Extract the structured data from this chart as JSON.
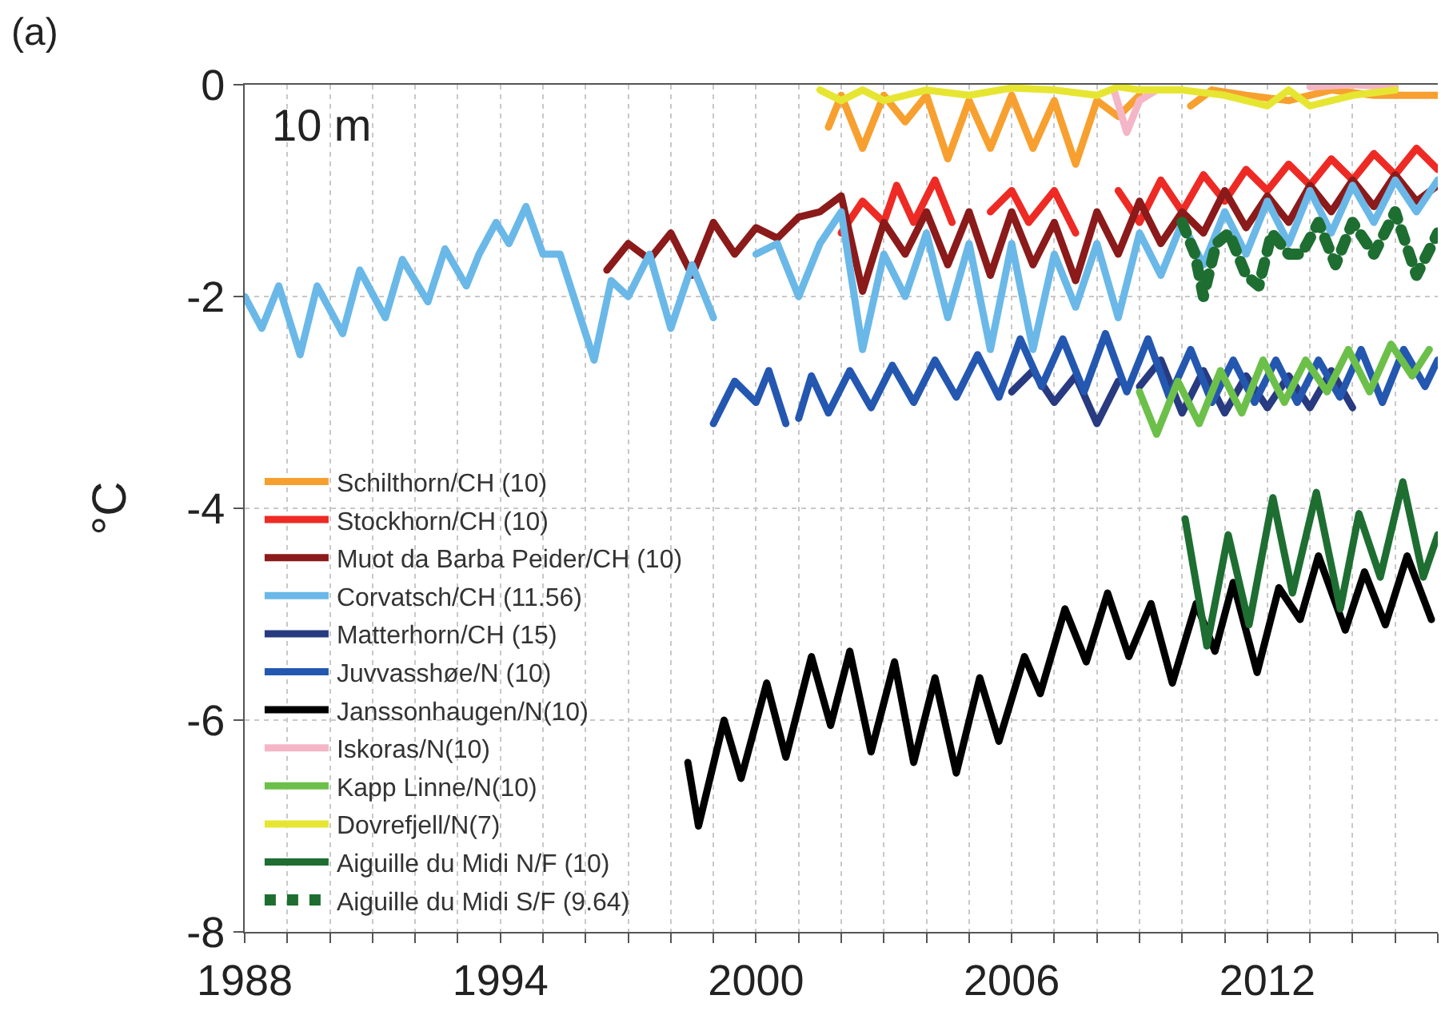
{
  "chart_data": {
    "type": "line",
    "ylabel": "°C",
    "annotations": [
      "(a)",
      "10 m"
    ],
    "xlim": [
      1988,
      2016
    ],
    "ylim": [
      -8,
      0
    ],
    "xticks": [
      1988,
      {
        "value": 1989,
        "label": null
      },
      {
        "value": 1990,
        "label": null
      },
      {
        "value": 1991,
        "label": null
      },
      {
        "value": 1992,
        "label": null
      },
      {
        "value": 1993,
        "label": null
      },
      1994,
      {
        "value": 1995,
        "label": null
      },
      {
        "value": 1996,
        "label": null
      },
      {
        "value": 1997,
        "label": null
      },
      {
        "value": 1998,
        "label": null
      },
      {
        "value": 1999,
        "label": null
      },
      2000,
      {
        "value": 2001,
        "label": null
      },
      {
        "value": 2002,
        "label": null
      },
      {
        "value": 2003,
        "label": null
      },
      {
        "value": 2004,
        "label": null
      },
      {
        "value": 2005,
        "label": null
      },
      2006,
      {
        "value": 2007,
        "label": null
      },
      {
        "value": 2008,
        "label": null
      },
      {
        "value": 2009,
        "label": null
      },
      {
        "value": 2010,
        "label": null
      },
      {
        "value": 2011,
        "label": null
      },
      2012,
      {
        "value": 2013,
        "label": null
      },
      {
        "value": 2014,
        "label": null
      },
      {
        "value": 2015,
        "label": null
      },
      {
        "value": 2016,
        "label": null
      }
    ],
    "yticks": [
      -8,
      -6,
      -4,
      -2,
      0
    ],
    "grid": true,
    "legend": "bottom left",
    "line_style": "solid",
    "series": [
      {
        "name": "Schilthorn/CH (10)",
        "color": "#f7a030",
        "x": [
          2001.7,
          2002,
          2002.5,
          2003,
          2003.5,
          2004,
          2004.5,
          2005,
          2005.5,
          2006,
          2006.5,
          2007,
          2007.5,
          2008,
          2008.5,
          2009,
          2009.6,
          2010.2,
          2010.7,
          2011.5,
          2012.5,
          2013.5,
          2014.5,
          2016
        ],
        "values": [
          -0.4,
          -0.1,
          -0.6,
          -0.1,
          -0.35,
          -0.1,
          -0.7,
          -0.15,
          -0.6,
          -0.1,
          -0.6,
          -0.15,
          -0.75,
          -0.15,
          -0.3,
          -0.1,
          null,
          -0.2,
          -0.05,
          -0.1,
          -0.15,
          -0.05,
          -0.1,
          -0.1
        ]
      },
      {
        "name": "Stockhorn/CH (10)",
        "color": "#ee2a24",
        "x": [
          2002,
          2002.5,
          2003,
          2003.3,
          2003.7,
          2004.2,
          2004.6,
          2005,
          2005.5,
          2006,
          2006.4,
          2007,
          2007.5,
          2008,
          2008.5,
          2009,
          2009.5,
          2010,
          2010.5,
          2011,
          2011.5,
          2012,
          2012.5,
          2013,
          2013.5,
          2014,
          2014.5,
          2015,
          2015.5,
          2016
        ],
        "values": [
          -1.4,
          -1.1,
          -1.3,
          -0.95,
          -1.3,
          -0.9,
          -1.3,
          null,
          -1.2,
          -1.0,
          -1.3,
          -1.0,
          -1.4,
          null,
          -1.0,
          -1.3,
          -0.9,
          -1.2,
          -0.85,
          -1.1,
          -0.8,
          -1.0,
          -0.75,
          -0.95,
          -0.7,
          -0.9,
          -0.65,
          -0.85,
          -0.6,
          -0.8
        ]
      },
      {
        "name": "Muot da Barba Peider/CH (10)",
        "color": "#8b1a1a",
        "x": [
          1996.5,
          1997,
          1997.5,
          1998,
          1998.5,
          1999,
          1999.5,
          2000,
          2000.5,
          2001,
          2001.5,
          2002,
          2002.5,
          2003,
          2003.5,
          2004,
          2004.5,
          2005,
          2005.5,
          2006,
          2006.5,
          2007,
          2007.5,
          2008,
          2008.5,
          2009,
          2009.5,
          2010,
          2010.5,
          2011,
          2011.5,
          2012,
          2012.5,
          2013,
          2013.5,
          2014,
          2014.5,
          2015,
          2015.5,
          2016
        ],
        "values": [
          -1.75,
          -1.5,
          -1.65,
          -1.4,
          -1.8,
          -1.3,
          -1.6,
          -1.35,
          -1.45,
          -1.25,
          -1.2,
          -1.05,
          -1.95,
          -1.3,
          -1.6,
          -1.2,
          -1.7,
          -1.2,
          -1.8,
          -1.2,
          -1.7,
          -1.3,
          -1.85,
          -1.2,
          -1.6,
          -1.1,
          -1.5,
          -1.2,
          -1.4,
          -1.0,
          -1.35,
          -1.05,
          -1.3,
          -0.95,
          -1.2,
          -0.9,
          -1.15,
          -0.85,
          -1.1,
          -0.95
        ]
      },
      {
        "name": "Corvatsch/CH (11.56)",
        "color": "#6ab8e8",
        "x": [
          1988,
          1988.4,
          1988.8,
          1989.3,
          1989.7,
          1990.3,
          1990.7,
          1991.3,
          1991.7,
          1992.3,
          1992.7,
          1993.2,
          1993.5,
          1993.9,
          1994.2,
          1994.6,
          1995,
          1995.4,
          1996.2,
          1996.6,
          1997,
          1997.5,
          1998,
          1998.5,
          1999,
          1999.5,
          2000,
          2000.5,
          2001,
          2001.5,
          2002,
          2002.5,
          2003,
          2003.5,
          2004,
          2004.5,
          2005,
          2005.5,
          2006,
          2006.5,
          2007,
          2007.5,
          2008,
          2008.5,
          2009,
          2009.5,
          2010,
          2010.5,
          2011,
          2011.5,
          2012,
          2012.5,
          2013,
          2013.5,
          2014,
          2014.5,
          2015,
          2015.5,
          2016
        ],
        "values": [
          -2.0,
          -2.3,
          -1.9,
          -2.55,
          -1.9,
          -2.35,
          -1.75,
          -2.2,
          -1.65,
          -2.05,
          -1.55,
          -1.9,
          -1.6,
          -1.3,
          -1.5,
          -1.15,
          -1.6,
          -1.6,
          -2.6,
          -1.85,
          -2.0,
          -1.6,
          -2.3,
          -1.7,
          -2.2,
          null,
          -1.6,
          -1.5,
          -2.0,
          -1.5,
          -1.2,
          -2.5,
          -1.6,
          -2.0,
          -1.4,
          -2.2,
          -1.5,
          -2.5,
          -1.5,
          -2.5,
          -1.6,
          -2.1,
          -1.5,
          -2.2,
          -1.4,
          -1.8,
          -1.3,
          -1.7,
          -1.2,
          -1.6,
          -1.1,
          -1.5,
          -1.0,
          -1.4,
          -0.95,
          -1.3,
          -0.9,
          -1.2,
          -0.9
        ]
      },
      {
        "name": "Matterhorn/CH (15)",
        "color": "#283a80",
        "x": [
          2006,
          2006.5,
          2007,
          2007.5,
          2008,
          2008.5,
          2008.8,
          2009,
          2009.5,
          2010,
          2010.5,
          2011,
          2011.5,
          2012,
          2012.5,
          2013,
          2013.5,
          2014
        ],
        "values": [
          -2.9,
          -2.7,
          -3.0,
          -2.75,
          -3.2,
          -2.8,
          null,
          -2.85,
          -2.6,
          -3.1,
          -2.7,
          -3.1,
          -2.75,
          -3.05,
          -2.75,
          -3.05,
          -2.7,
          -3.05
        ]
      },
      {
        "name": "Juvvasshøe/N (10)",
        "color": "#2457b0",
        "x": [
          1999,
          1999.5,
          2000,
          2000.3,
          2000.7,
          2000.85,
          2001,
          2001.3,
          2001.7,
          2002.2,
          2002.7,
          2003.2,
          2003.7,
          2004.2,
          2004.7,
          2005.2,
          2005.7,
          2006.2,
          2006.7,
          2007.2,
          2007.7,
          2008.2,
          2008.7,
          2009.2,
          2009.7,
          2010.2,
          2010.7,
          2011.2,
          2011.7,
          2012.2,
          2012.7,
          2013.2,
          2013.7,
          2014.2,
          2014.7,
          2015.2,
          2015.7,
          2016
        ],
        "values": [
          -3.2,
          -2.8,
          -3.0,
          -2.7,
          -3.2,
          null,
          -3.15,
          -2.75,
          -3.1,
          -2.7,
          -3.05,
          -2.65,
          -3.0,
          -2.6,
          -2.95,
          -2.55,
          -2.95,
          -2.4,
          -2.85,
          -2.4,
          -2.9,
          -2.35,
          -2.9,
          -2.4,
          -2.95,
          -2.5,
          -3.0,
          -2.6,
          -3.0,
          -2.6,
          -3.0,
          -2.6,
          -2.95,
          -2.5,
          -3.0,
          -2.5,
          -2.85,
          -2.6
        ]
      },
      {
        "name": "Janssonhaugen/N(10)",
        "color": "#000000",
        "x": [
          1998.4,
          1998.65,
          1999.25,
          1999.65,
          2000.25,
          2000.7,
          2001.3,
          2001.75,
          2002.2,
          2002.7,
          2003.25,
          2003.7,
          2004.2,
          2004.7,
          2005.25,
          2005.7,
          2006.3,
          2006.67,
          2007.25,
          2007.75,
          2008.25,
          2008.75,
          2009.27,
          2009.77,
          2010.33,
          2010.77,
          2011.2,
          2011.76,
          2012.27,
          2012.77,
          2013.2,
          2013.83,
          2014.28,
          2014.77,
          2015.28,
          2015.85
        ],
        "values": [
          -6.4,
          -7.0,
          -6.0,
          -6.55,
          -5.65,
          -6.35,
          -5.4,
          -6.05,
          -5.35,
          -6.3,
          -5.45,
          -6.4,
          -5.6,
          -6.5,
          -5.6,
          -6.2,
          -5.4,
          -5.75,
          -4.95,
          -5.45,
          -4.8,
          -5.4,
          -4.9,
          -5.65,
          -4.9,
          -5.35,
          -4.7,
          -5.55,
          -4.75,
          -5.05,
          -4.45,
          -5.15,
          -4.6,
          -5.1,
          -4.45,
          -5.05
        ]
      },
      {
        "name": "Iskoras/N(10)",
        "color": "#f4b6c6",
        "x": [
          2008.4,
          2008.7,
          2009.0,
          2009.4,
          2011,
          2013,
          2014,
          2015
        ],
        "values": [
          -0.05,
          -0.45,
          -0.15,
          -0.05,
          null,
          -0.02,
          0,
          -0.02
        ]
      },
      {
        "name": "Kapp Linne/N(10)",
        "color": "#6cc04a",
        "x": [
          2009,
          2009.4,
          2009.9,
          2010.4,
          2010.9,
          2011.4,
          2011.9,
          2012.4,
          2012.9,
          2013.4,
          2013.9,
          2014.4,
          2014.9,
          2015.4,
          2015.8
        ],
        "values": [
          -2.9,
          -3.3,
          -2.8,
          -3.2,
          -2.7,
          -3.1,
          -2.6,
          -3.0,
          -2.6,
          -2.9,
          -2.5,
          -2.9,
          -2.45,
          -2.75,
          -2.5
        ]
      },
      {
        "name": "Dovrefjell/N(7)",
        "color": "#e6e632",
        "x": [
          2001.5,
          2002,
          2002.5,
          2003,
          2003.5,
          2004,
          2005,
          2006,
          2007,
          2008,
          2008.5,
          2009,
          2010,
          2011,
          2012,
          2012.5,
          2013,
          2014,
          2015
        ],
        "values": [
          -0.05,
          -0.15,
          -0.05,
          -0.15,
          -0.1,
          -0.05,
          -0.1,
          -0.03,
          -0.05,
          -0.1,
          -0.02,
          -0.05,
          -0.05,
          -0.1,
          -0.2,
          -0.05,
          -0.2,
          -0.1,
          -0.05
        ]
      },
      {
        "name": "Aiguille du Midi N/F (10)",
        "color": "#1e6e32",
        "x": [
          2010.07,
          2010.58,
          2011.08,
          2011.57,
          2012.13,
          2012.59,
          2013.15,
          2013.71,
          2014.15,
          2014.65,
          2015.18,
          2015.66,
          2016
        ],
        "values": [
          -4.1,
          -5.3,
          -4.25,
          -5.1,
          -3.9,
          -4.8,
          -3.85,
          -4.95,
          -4.05,
          -4.65,
          -3.75,
          -4.65,
          -4.25
        ]
      },
      {
        "name": "Aiguille du Midi S/F (9.64)",
        "color": "#1e6e32",
        "line_style": "dotted",
        "x": [
          2010,
          2010.3,
          2010.5,
          2010.8,
          2011.1,
          2011.5,
          2011.8,
          2012.1,
          2012.5,
          2012.8,
          2013.2,
          2013.6,
          2014,
          2014.5,
          2015,
          2015.5,
          2016
        ],
        "values": [
          -1.3,
          -1.6,
          -2.0,
          -1.5,
          -1.4,
          -1.8,
          -1.9,
          -1.4,
          -1.6,
          -1.6,
          -1.3,
          -1.7,
          -1.3,
          -1.6,
          -1.2,
          -1.8,
          -1.4
        ]
      }
    ]
  }
}
